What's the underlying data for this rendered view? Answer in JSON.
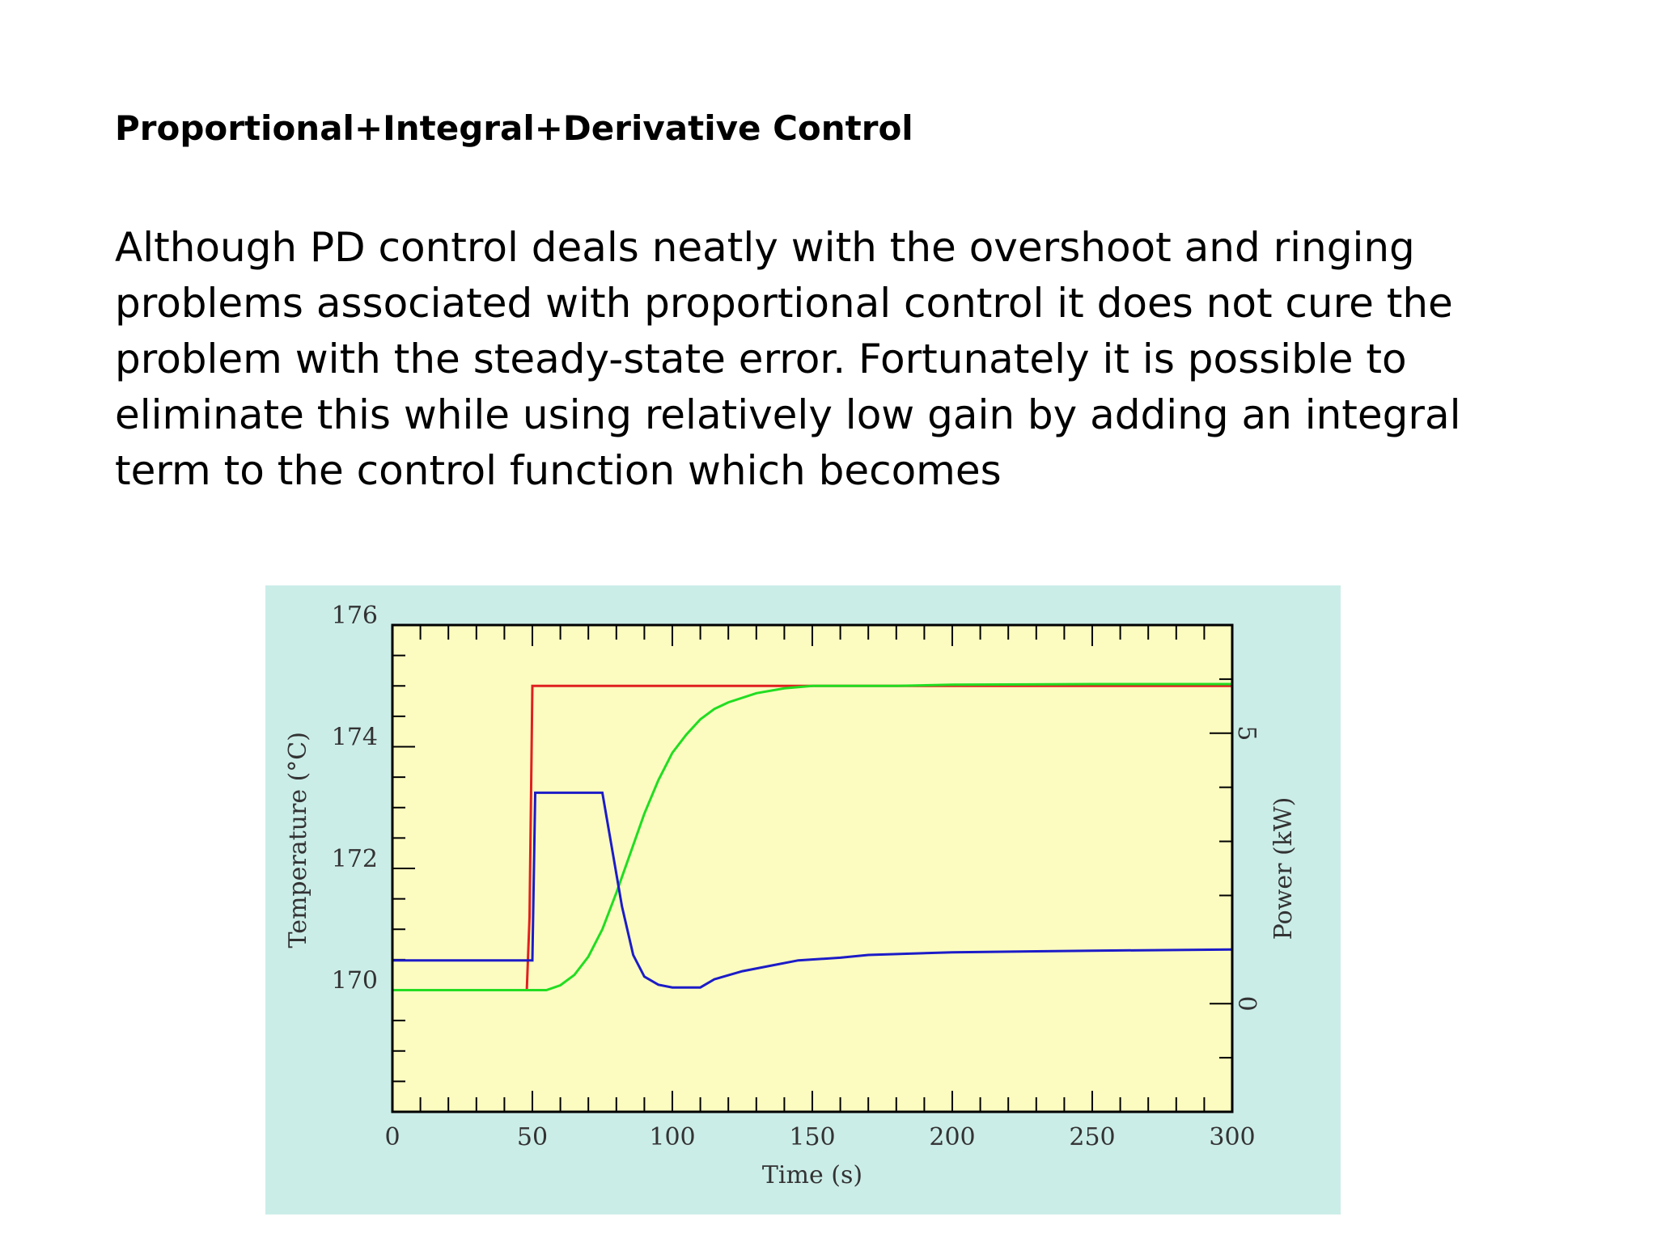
{
  "slide": {
    "title": "Proportional+Integral+Derivative Control",
    "body": "Although PD control deals neatly with the overshoot and ringing problems associated with proportional control it does not cure the problem with the steady-state error. Fortunately it is possible to eliminate this while using relatively low gain by adding an integral term to the control function which becomes"
  },
  "chart_data": {
    "type": "line",
    "title": "",
    "xlabel": "Time (s)",
    "ylabel": "Temperature (°C)",
    "y2label": "Power (kW)",
    "xlim": [
      0,
      300
    ],
    "ylim": [
      168,
      176
    ],
    "y2lim": [
      -2,
      7
    ],
    "xticks": [
      "0",
      "50",
      "100",
      "150",
      "200",
      "250",
      "300"
    ],
    "yticks": [
      "170",
      "172",
      "174",
      "176"
    ],
    "y2ticks": [
      "0",
      "5"
    ],
    "grid": false,
    "colors": {
      "background": "#cbede8",
      "plot_area": "#fcfcc0",
      "setpoint": "#e02020",
      "temperature": "#22dd22",
      "power": "#1c1cc8",
      "axes": "#000000"
    },
    "series": [
      {
        "axis": "left",
        "color": "#e02020",
        "x": [
          0,
          48,
          49,
          50,
          300
        ],
        "y": [
          170,
          170,
          171.2,
          175,
          175
        ]
      },
      {
        "axis": "left",
        "color": "#22dd22",
        "x": [
          0,
          55,
          60,
          65,
          70,
          75,
          80,
          85,
          90,
          95,
          100,
          105,
          110,
          115,
          120,
          130,
          140,
          150,
          160,
          180,
          200,
          250,
          300
        ],
        "y": [
          170,
          170,
          170.08,
          170.25,
          170.55,
          171.0,
          171.6,
          172.25,
          172.9,
          173.45,
          173.9,
          174.2,
          174.45,
          174.62,
          174.73,
          174.88,
          174.96,
          175.0,
          175.0,
          175.0,
          175.02,
          175.03,
          175.03
        ]
      },
      {
        "axis": "right",
        "color": "#1c1cc8",
        "x": [
          0,
          50,
          51,
          75,
          78,
          82,
          86,
          90,
          95,
          100,
          110,
          115,
          125,
          135,
          145,
          160,
          170,
          200,
          250,
          300
        ],
        "y": [
          0.8,
          0.8,
          3.9,
          3.9,
          3.0,
          1.8,
          0.9,
          0.5,
          0.35,
          0.3,
          0.3,
          0.45,
          0.6,
          0.7,
          0.8,
          0.85,
          0.9,
          0.95,
          0.98,
          1.0
        ]
      }
    ]
  }
}
